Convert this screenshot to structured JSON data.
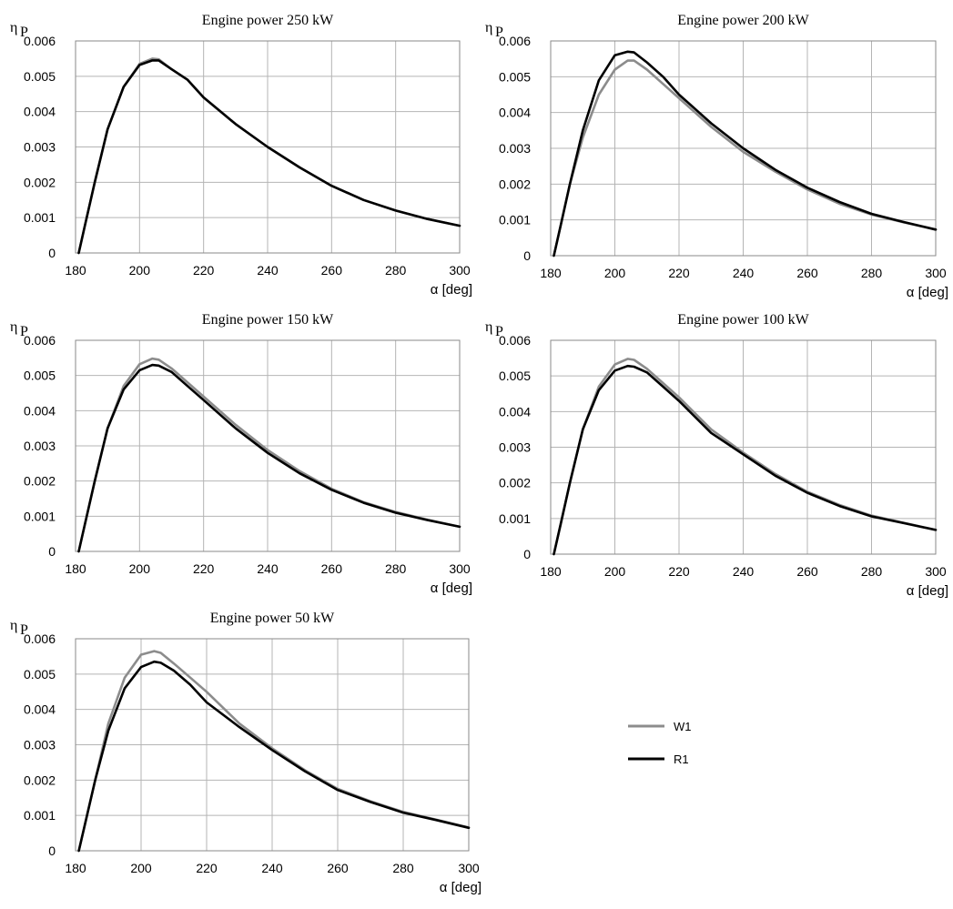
{
  "colors": {
    "W1": "#8c8c8c",
    "R1": "#000000",
    "grid": "#b4b4b4"
  },
  "legend": {
    "placement": "right-center",
    "entries": [
      "W1",
      "R1"
    ]
  },
  "chart_data": [
    {
      "type": "line",
      "title": "Engine power 250 kW",
      "ylabel": "η",
      "ylabel_sub": "P",
      "xlabel": "α [deg]",
      "xlim": [
        180,
        300
      ],
      "ylim": [
        0,
        0.006
      ],
      "xticks": [
        "180",
        "200",
        "220",
        "240",
        "260",
        "280",
        "300"
      ],
      "yticks": [
        "0",
        "0.001",
        "0.002",
        "0.003",
        "0.004",
        "0.005",
        "0.006"
      ],
      "grid": true,
      "x": [
        181,
        183,
        186,
        190,
        195,
        200,
        204,
        206,
        210,
        215,
        220,
        230,
        240,
        250,
        260,
        270,
        280,
        290,
        300
      ],
      "series": [
        {
          "name": "W1",
          "values": [
            0,
            0.0008,
            0.002,
            0.0035,
            0.0047,
            0.00535,
            0.0055,
            0.00548,
            0.0052,
            0.0049,
            0.0044,
            0.00365,
            0.003,
            0.00242,
            0.0019,
            0.0015,
            0.0012,
            0.00096,
            0.00077
          ]
        },
        {
          "name": "R1",
          "values": [
            0,
            0.0008,
            0.002,
            0.0035,
            0.0047,
            0.00532,
            0.00545,
            0.00545,
            0.0052,
            0.0049,
            0.0044,
            0.00365,
            0.003,
            0.00242,
            0.0019,
            0.0015,
            0.0012,
            0.00096,
            0.00077
          ]
        }
      ]
    },
    {
      "type": "line",
      "title": "Engine power 200 kW",
      "ylabel": "η",
      "ylabel_sub": "P",
      "xlabel": "α [deg]",
      "xlim": [
        180,
        300
      ],
      "ylim": [
        0,
        0.006
      ],
      "xticks": [
        "180",
        "200",
        "220",
        "240",
        "260",
        "280",
        "300"
      ],
      "yticks": [
        "0",
        "0.001",
        "0.002",
        "0.003",
        "0.004",
        "0.005",
        "0.006"
      ],
      "grid": true,
      "x": [
        181,
        183,
        186,
        190,
        195,
        200,
        204,
        206,
        210,
        215,
        220,
        230,
        240,
        250,
        260,
        270,
        280,
        290,
        300
      ],
      "series": [
        {
          "name": "W1",
          "values": [
            0,
            0.0008,
            0.002,
            0.0033,
            0.0045,
            0.0052,
            0.00545,
            0.00545,
            0.0052,
            0.0048,
            0.0044,
            0.0036,
            0.0029,
            0.00235,
            0.00185,
            0.00145,
            0.00115,
            0.00093,
            0.00073
          ]
        },
        {
          "name": "R1",
          "values": [
            0,
            0.0008,
            0.002,
            0.0035,
            0.0049,
            0.0056,
            0.0057,
            0.00568,
            0.0054,
            0.005,
            0.0045,
            0.0037,
            0.003,
            0.0024,
            0.0019,
            0.0015,
            0.00117,
            0.00094,
            0.00073
          ]
        }
      ]
    },
    {
      "type": "line",
      "title": "Engine power 150 kW",
      "ylabel": "η",
      "ylabel_sub": "P",
      "xlabel": "α [deg]",
      "xlim": [
        180,
        300
      ],
      "ylim": [
        0,
        0.006
      ],
      "xticks": [
        "180",
        "200",
        "220",
        "240",
        "260",
        "280",
        "300"
      ],
      "yticks": [
        "0",
        "0.001",
        "0.002",
        "0.003",
        "0.004",
        "0.005",
        "0.006"
      ],
      "grid": true,
      "x": [
        181,
        183,
        186,
        190,
        195,
        200,
        204,
        206,
        210,
        215,
        220,
        230,
        240,
        250,
        260,
        270,
        280,
        290,
        300
      ],
      "series": [
        {
          "name": "W1",
          "values": [
            0,
            0.0008,
            0.002,
            0.0035,
            0.0047,
            0.00532,
            0.00548,
            0.00545,
            0.0052,
            0.0048,
            0.0044,
            0.0036,
            0.00288,
            0.00228,
            0.00178,
            0.0014,
            0.00112,
            0.0009,
            0.0007
          ]
        },
        {
          "name": "R1",
          "values": [
            0,
            0.0008,
            0.002,
            0.0035,
            0.0046,
            0.00515,
            0.0053,
            0.00528,
            0.0051,
            0.0047,
            0.0043,
            0.0035,
            0.0028,
            0.00222,
            0.00175,
            0.00138,
            0.0011,
            0.00089,
            0.0007
          ]
        }
      ]
    },
    {
      "type": "line",
      "title": "Engine power 100 kW",
      "ylabel": "η",
      "ylabel_sub": "P",
      "xlabel": "α [deg]",
      "xlim": [
        180,
        300
      ],
      "ylim": [
        0,
        0.006
      ],
      "xticks": [
        "180",
        "200",
        "220",
        "240",
        "260",
        "280",
        "300"
      ],
      "yticks": [
        "0",
        "0.001",
        "0.002",
        "0.003",
        "0.004",
        "0.005",
        "0.006"
      ],
      "grid": true,
      "x": [
        181,
        183,
        186,
        190,
        195,
        200,
        204,
        206,
        210,
        215,
        220,
        230,
        240,
        250,
        260,
        270,
        280,
        290,
        300
      ],
      "series": [
        {
          "name": "W1",
          "values": [
            0,
            0.0008,
            0.002,
            0.0035,
            0.0047,
            0.00532,
            0.00548,
            0.00545,
            0.0052,
            0.0048,
            0.0044,
            0.0035,
            0.00285,
            0.00225,
            0.00175,
            0.00138,
            0.00108,
            0.00088,
            0.00068
          ]
        },
        {
          "name": "R1",
          "values": [
            0,
            0.0008,
            0.002,
            0.0035,
            0.0046,
            0.00515,
            0.00528,
            0.00526,
            0.0051,
            0.0047,
            0.0043,
            0.0034,
            0.0028,
            0.0022,
            0.00172,
            0.00135,
            0.00106,
            0.00087,
            0.00068
          ]
        }
      ]
    },
    {
      "type": "line",
      "title": "Engine power 50 kW",
      "ylabel": "η",
      "ylabel_sub": "P",
      "xlabel": "α [deg]",
      "xlim": [
        180,
        300
      ],
      "ylim": [
        0,
        0.006
      ],
      "xticks": [
        "180",
        "200",
        "220",
        "240",
        "260",
        "280",
        "300"
      ],
      "yticks": [
        "0",
        "0.001",
        "0.002",
        "0.003",
        "0.004",
        "0.005",
        "0.006"
      ],
      "grid": true,
      "x": [
        181,
        183,
        186,
        190,
        195,
        200,
        204,
        206,
        210,
        215,
        220,
        230,
        240,
        250,
        260,
        270,
        280,
        290,
        300
      ],
      "series": [
        {
          "name": "W1",
          "values": [
            0,
            0.0008,
            0.002,
            0.0036,
            0.0049,
            0.00555,
            0.00565,
            0.0056,
            0.0053,
            0.0049,
            0.0045,
            0.0036,
            0.0029,
            0.00228,
            0.00175,
            0.0014,
            0.0011,
            0.00088,
            0.00066
          ]
        },
        {
          "name": "R1",
          "values": [
            0,
            0.0008,
            0.002,
            0.0034,
            0.0046,
            0.0052,
            0.00535,
            0.00532,
            0.0051,
            0.0047,
            0.0042,
            0.0035,
            0.00285,
            0.00225,
            0.00172,
            0.00138,
            0.00108,
            0.00087,
            0.00065
          ]
        }
      ]
    }
  ]
}
